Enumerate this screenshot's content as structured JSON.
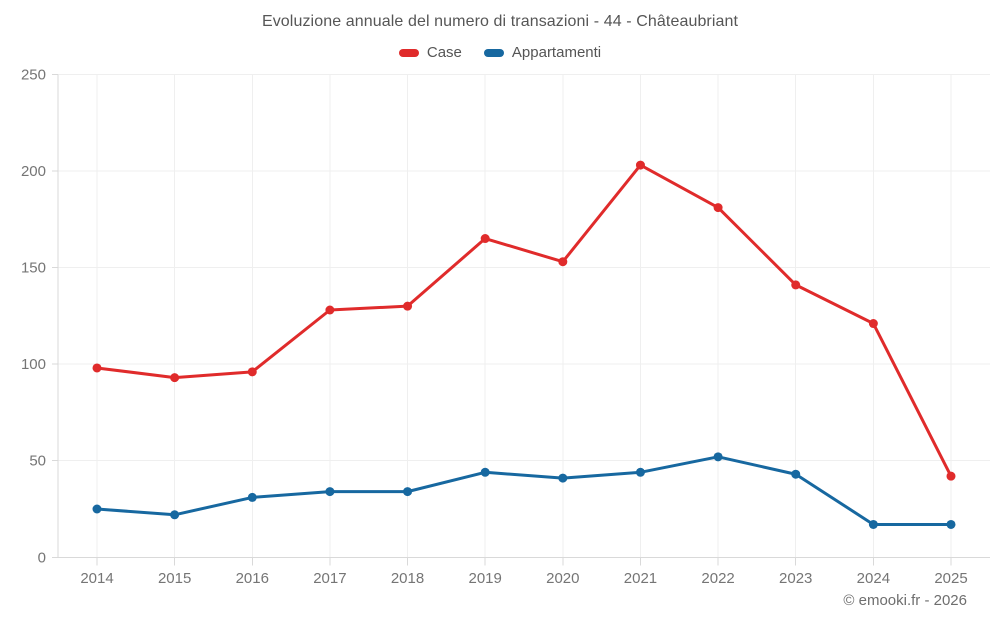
{
  "chart": {
    "title": "Evoluzione annuale del numero di transazioni - 44 - Châteaubriant"
  },
  "footer": {
    "attribution": "© emooki.fr - 2026"
  },
  "chart_data": {
    "type": "line",
    "title": "Evoluzione annuale del numero di transazioni - 44 - Châteaubriant",
    "categories": [
      "2014",
      "2015",
      "2016",
      "2017",
      "2018",
      "2019",
      "2020",
      "2021",
      "2022",
      "2023",
      "2024",
      "2025"
    ],
    "series": [
      {
        "name": "Case",
        "color": "#e02b2b",
        "values": [
          98,
          93,
          96,
          128,
          130,
          165,
          153,
          203,
          181,
          141,
          121,
          42
        ]
      },
      {
        "name": "Appartamenti",
        "color": "#1768a0",
        "values": [
          25,
          22,
          31,
          34,
          34,
          44,
          41,
          44,
          52,
          43,
          17,
          17
        ]
      }
    ],
    "xlabel": "",
    "ylabel": "",
    "ylim": [
      0,
      250
    ],
    "yticks": [
      0,
      50,
      100,
      150,
      200,
      250
    ],
    "grid": true,
    "legend_position": "top",
    "marker": "circle"
  }
}
